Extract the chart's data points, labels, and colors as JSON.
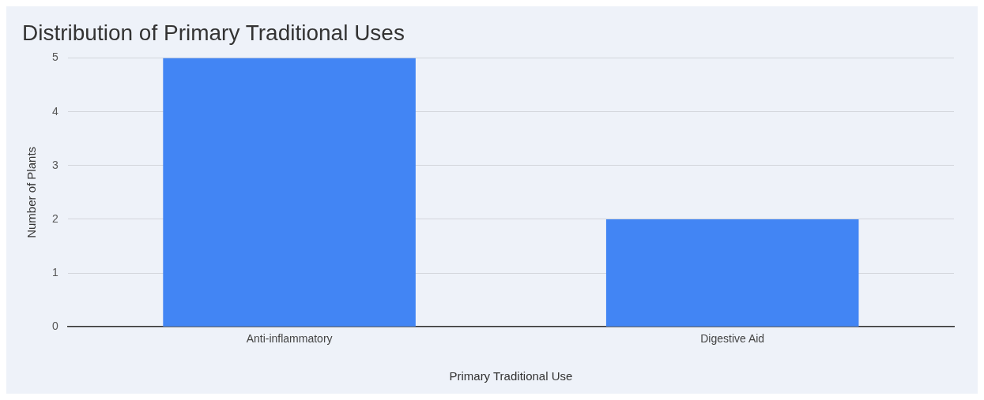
{
  "chart_data": {
    "type": "bar",
    "title": "Distribution of Primary Traditional Uses",
    "xlabel": "Primary Traditional Use",
    "ylabel": "Number of Plants",
    "categories": [
      "Anti-inflammatory",
      "Digestive Aid"
    ],
    "values": [
      5,
      2
    ],
    "color": "#4285f4",
    "ylim": [
      0,
      5
    ],
    "yticks": [
      0,
      1,
      2,
      3,
      4,
      5
    ],
    "grid": "y",
    "legend": false
  }
}
